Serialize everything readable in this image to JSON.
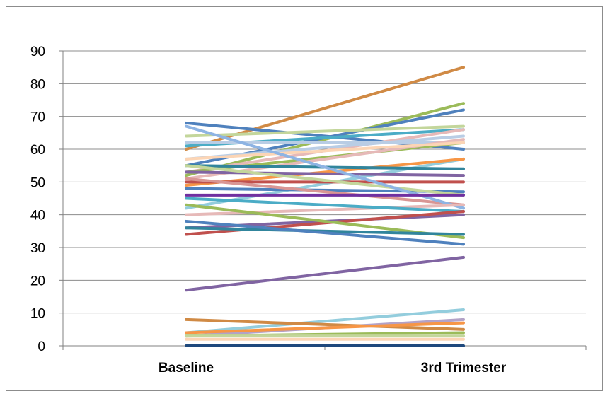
{
  "chart_data": {
    "type": "line",
    "categories": [
      "Baseline",
      "3rd Trimester"
    ],
    "ylim": [
      0,
      90
    ],
    "yticks": [
      0,
      10,
      20,
      30,
      40,
      50,
      60,
      70,
      80,
      90
    ],
    "grid": true,
    "legend": "none",
    "series": [
      {
        "color": "#D08A45",
        "values": [
          60,
          85
        ]
      },
      {
        "color": "#9BBB59",
        "values": [
          52,
          74
        ]
      },
      {
        "color": "#4F81BD",
        "values": [
          55,
          72
        ]
      },
      {
        "color": "#4F81BD",
        "values": [
          68,
          60
        ]
      },
      {
        "color": "#4BACC6",
        "values": [
          61,
          66
        ]
      },
      {
        "color": "#C3D69B",
        "values": [
          64,
          67
        ]
      },
      {
        "color": "#E6B9B8",
        "values": [
          53,
          66
        ]
      },
      {
        "color": "#B9CDE5",
        "values": [
          57,
          64
        ]
      },
      {
        "color": "#9BBB59",
        "values": [
          53,
          62
        ]
      },
      {
        "color": "#B9CDE5",
        "values": [
          62,
          62
        ]
      },
      {
        "color": "#E6B9B8",
        "values": [
          51,
          63
        ]
      },
      {
        "color": "#FCD5B5",
        "values": [
          57,
          62
        ]
      },
      {
        "color": "#93CDDD",
        "values": [
          42,
          57
        ]
      },
      {
        "color": "#F79646",
        "values": [
          49,
          57
        ]
      },
      {
        "color": "#8064A2",
        "values": [
          53,
          52
        ]
      },
      {
        "color": "#C0504D",
        "values": [
          50,
          50
        ]
      },
      {
        "color": "#31859C",
        "values": [
          55,
          54
        ]
      },
      {
        "color": "#4F81BD",
        "values": [
          48,
          47
        ]
      },
      {
        "color": "#C3D69B",
        "values": [
          55,
          46
        ]
      },
      {
        "color": "#D99694",
        "values": [
          51,
          43
        ]
      },
      {
        "color": "#8EB4E3",
        "values": [
          67,
          42
        ]
      },
      {
        "color": "#E6B9B8",
        "values": [
          40,
          43
        ]
      },
      {
        "color": "#4BACC6",
        "values": [
          45,
          41
        ]
      },
      {
        "color": "#8064A2",
        "values": [
          36,
          40
        ]
      },
      {
        "color": "#C0504D",
        "values": [
          34,
          41
        ]
      },
      {
        "color": "#7030A0",
        "values": [
          46,
          46
        ]
      },
      {
        "color": "#9BBB59",
        "values": [
          43,
          33
        ]
      },
      {
        "color": "#31859C",
        "values": [
          36,
          34
        ]
      },
      {
        "color": "#4F81BD",
        "values": [
          38,
          31
        ]
      },
      {
        "color": "#8064A2",
        "values": [
          17,
          27
        ]
      },
      {
        "color": "#93CDDD",
        "values": [
          4,
          11
        ]
      },
      {
        "color": "#B3A2C7",
        "values": [
          3,
          8
        ]
      },
      {
        "color": "#D08A45",
        "values": [
          8,
          5
        ]
      },
      {
        "color": "#F79646",
        "values": [
          4,
          7
        ]
      },
      {
        "color": "#9BBB59",
        "values": [
          3,
          4
        ]
      },
      {
        "color": "#C3D69B",
        "values": [
          3,
          3
        ]
      },
      {
        "color": "#FCD5B5",
        "values": [
          2,
          2
        ]
      },
      {
        "color": "#1F497D",
        "values": [
          0,
          0
        ]
      }
    ]
  }
}
